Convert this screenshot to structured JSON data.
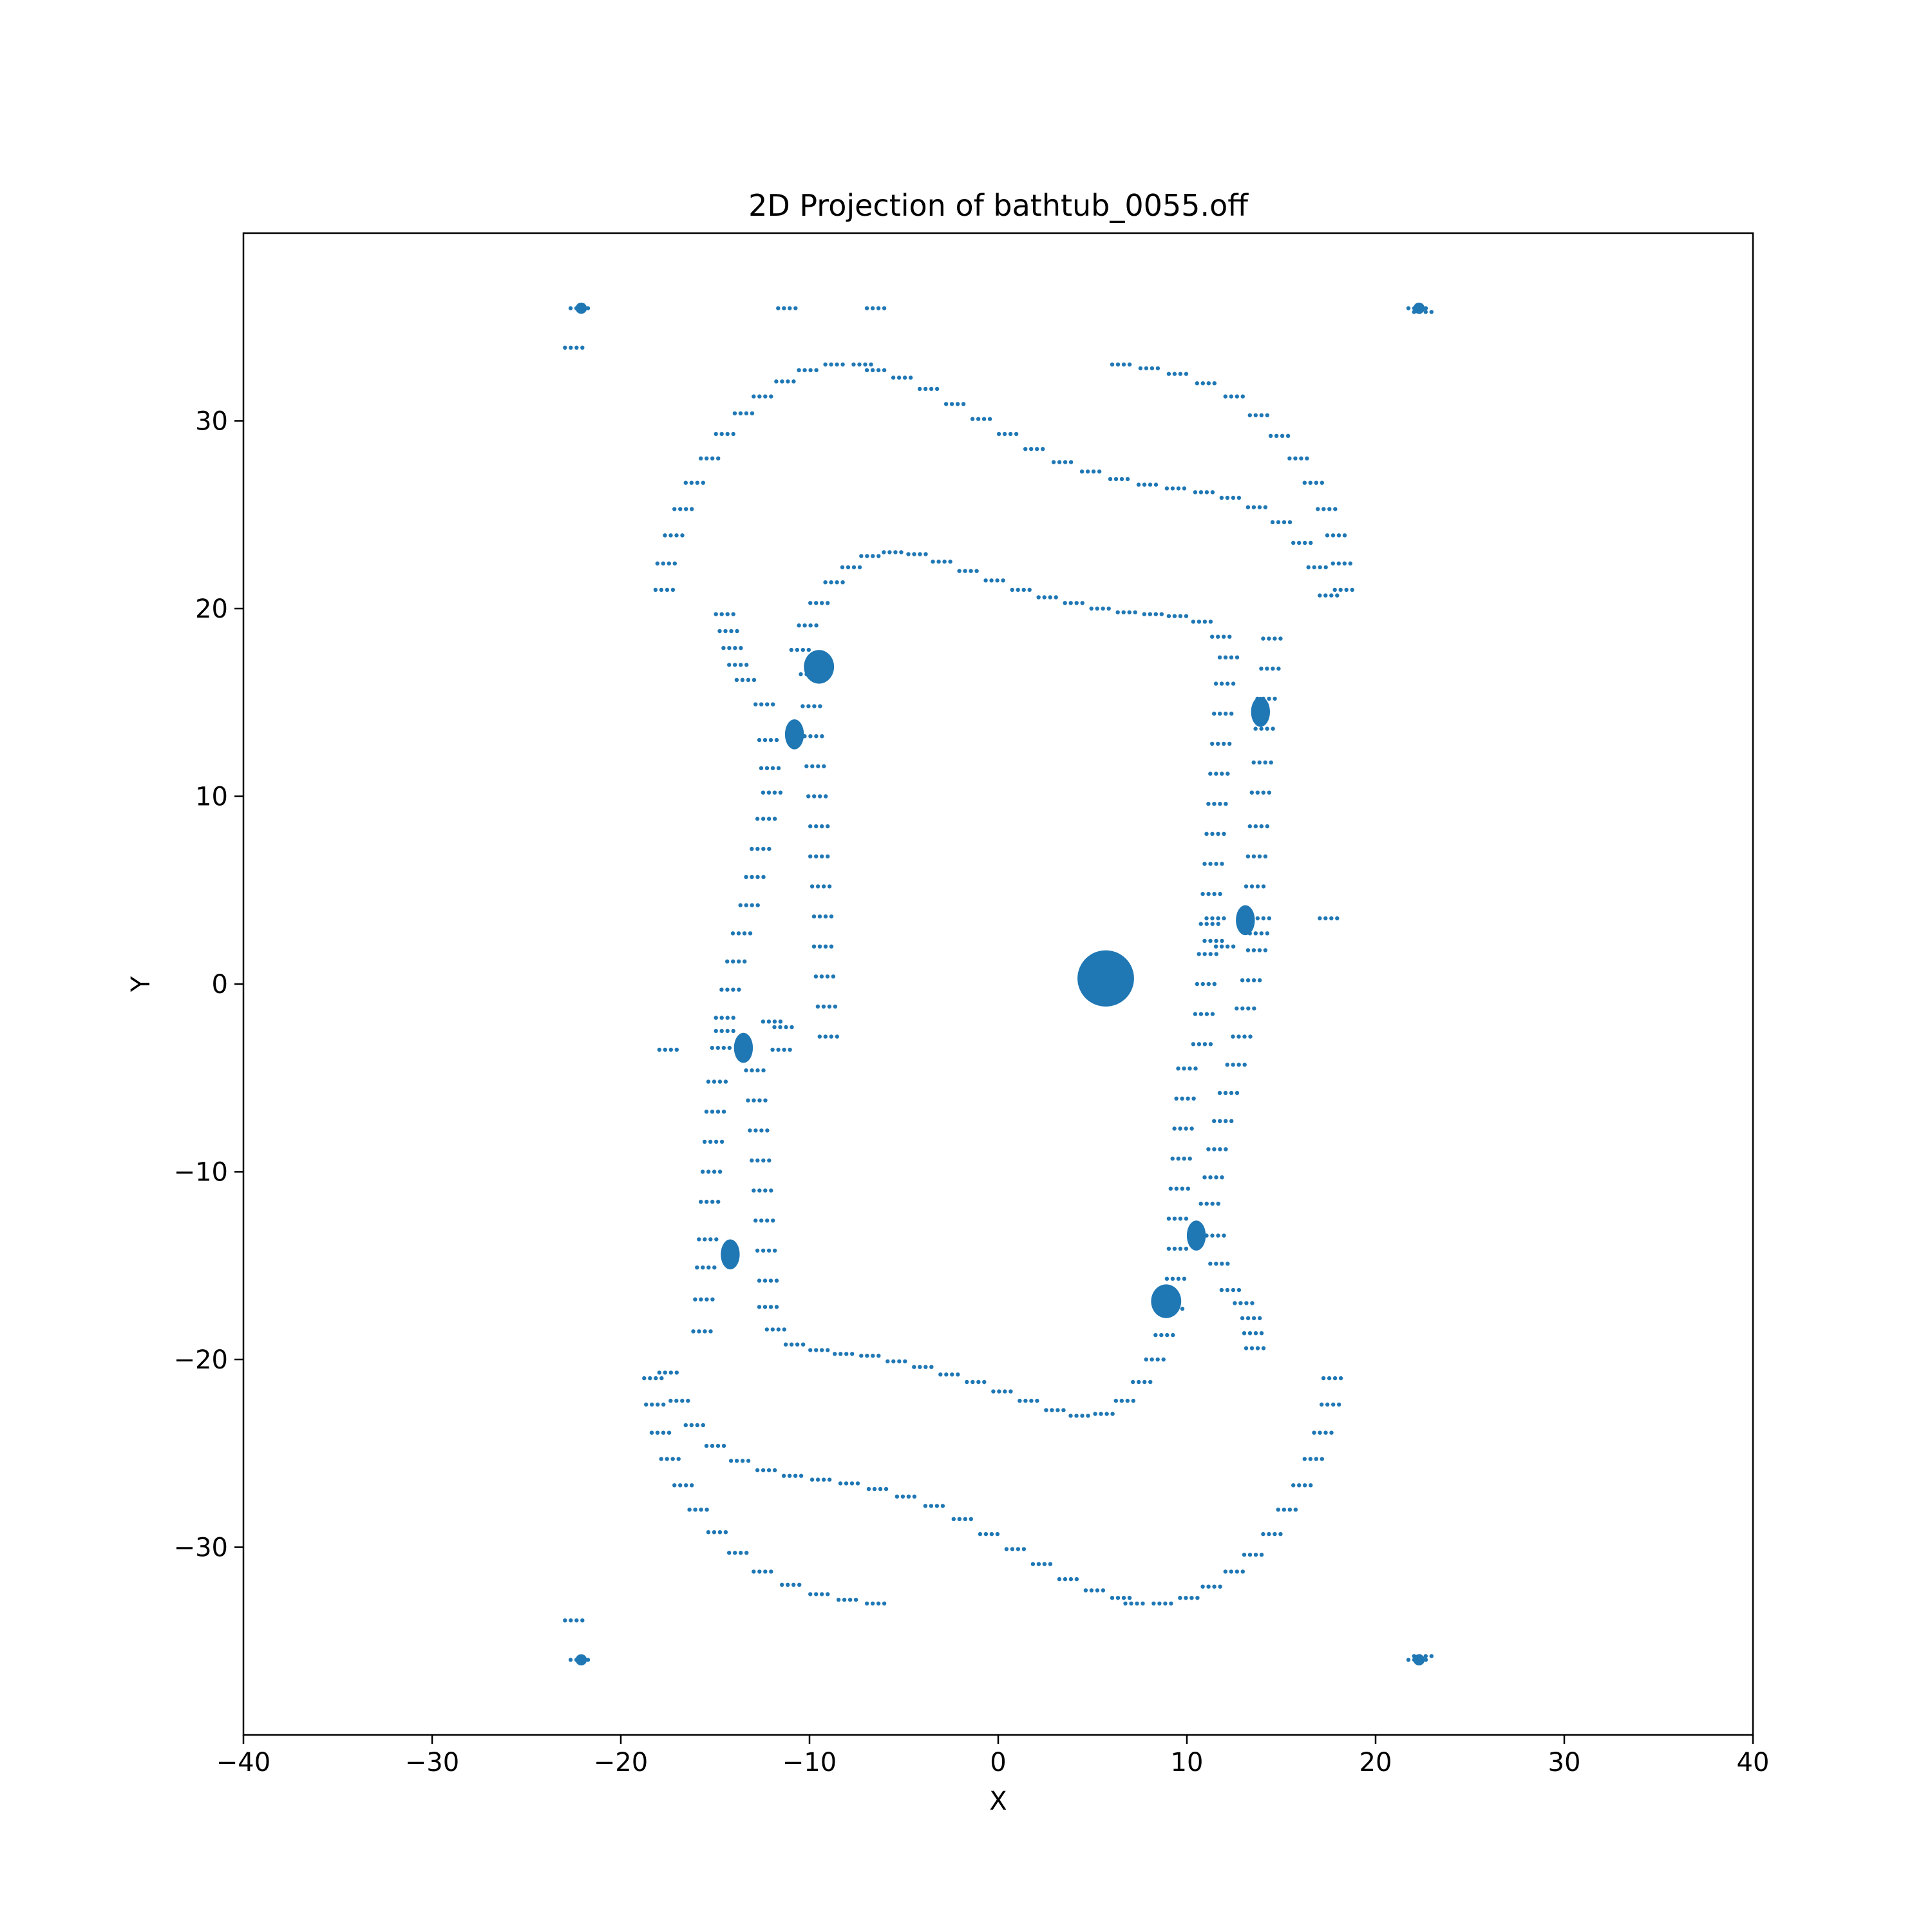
{
  "chart_data": {
    "type": "scatter",
    "title": "2D Projection of bathtub_0055.off",
    "xlabel": "X",
    "ylabel": "Y",
    "xlim": [
      -40,
      40
    ],
    "ylim": [
      -40,
      40
    ],
    "xticks": [
      -40,
      -30,
      -20,
      -10,
      0,
      10,
      20,
      30,
      40
    ],
    "yticks": [
      -30,
      -20,
      -10,
      0,
      10,
      20,
      30
    ],
    "xtick_labels": [
      "−40",
      "−30",
      "−20",
      "−10",
      "0",
      "10",
      "20",
      "30",
      "40"
    ],
    "ytick_labels": [
      "−30",
      "−20",
      "−10",
      "0",
      "10",
      "20",
      "30"
    ],
    "grid": false,
    "legend": "none",
    "marker_color": "#1f77b4",
    "series": [
      {
        "values": [
          [
            -22.2,
            36.0
          ],
          [
            -22.5,
            33.9
          ],
          [
            -11.2,
            36.0
          ],
          [
            -6.5,
            36.0
          ],
          [
            22.2,
            36.0
          ],
          [
            22.5,
            35.8
          ],
          [
            -22.2,
            -36.0
          ],
          [
            -22.5,
            -33.9
          ],
          [
            22.2,
            -36.0
          ],
          [
            22.5,
            -35.8
          ],
          [
            -17.5,
            -3.5
          ],
          [
            17.5,
            3.5
          ],
          [
            -17.7,
            21.0
          ],
          [
            -17.6,
            22.4
          ],
          [
            -17.2,
            23.9
          ],
          [
            -16.7,
            25.3
          ],
          [
            -16.1,
            26.7
          ],
          [
            -15.3,
            28.0
          ],
          [
            -14.5,
            29.3
          ],
          [
            -13.5,
            30.4
          ],
          [
            -12.5,
            31.3
          ],
          [
            -11.3,
            32.1
          ],
          [
            -10.1,
            32.7
          ],
          [
            -8.7,
            33.0
          ],
          [
            -7.2,
            33.0
          ],
          [
            -6.5,
            32.7
          ],
          [
            -5.1,
            32.3
          ],
          [
            -3.7,
            31.7
          ],
          [
            -2.3,
            30.9
          ],
          [
            -0.9,
            30.1
          ],
          [
            0.5,
            29.3
          ],
          [
            1.9,
            28.5
          ],
          [
            3.4,
            27.8
          ],
          [
            4.9,
            27.3
          ],
          [
            6.4,
            26.9
          ],
          [
            7.9,
            26.6
          ],
          [
            9.4,
            26.4
          ],
          [
            10.9,
            26.2
          ],
          [
            12.3,
            25.9
          ],
          [
            13.7,
            25.4
          ],
          [
            15.0,
            24.6
          ],
          [
            16.1,
            23.5
          ],
          [
            16.9,
            22.2
          ],
          [
            17.5,
            20.7
          ],
          [
            6.5,
            33.0
          ],
          [
            8.0,
            32.8
          ],
          [
            9.5,
            32.5
          ],
          [
            11.0,
            32.0
          ],
          [
            12.5,
            31.3
          ],
          [
            13.8,
            30.3
          ],
          [
            14.9,
            29.2
          ],
          [
            15.9,
            28.0
          ],
          [
            16.7,
            26.7
          ],
          [
            17.4,
            25.3
          ],
          [
            17.9,
            23.9
          ],
          [
            18.2,
            22.4
          ],
          [
            18.3,
            21.0
          ],
          [
            17.7,
            -21.0
          ],
          [
            17.6,
            -22.4
          ],
          [
            17.2,
            -23.9
          ],
          [
            16.7,
            -25.3
          ],
          [
            16.1,
            -26.7
          ],
          [
            15.3,
            -28.0
          ],
          [
            14.5,
            -29.3
          ],
          [
            13.5,
            -30.4
          ],
          [
            12.5,
            -31.3
          ],
          [
            11.3,
            -32.1
          ],
          [
            10.1,
            -32.7
          ],
          [
            8.7,
            -33.0
          ],
          [
            7.2,
            -33.0
          ],
          [
            6.5,
            -32.7
          ],
          [
            5.1,
            -32.3
          ],
          [
            3.7,
            -31.7
          ],
          [
            2.3,
            -30.9
          ],
          [
            0.9,
            -30.1
          ],
          [
            -0.5,
            -29.3
          ],
          [
            -1.9,
            -28.5
          ],
          [
            -3.4,
            -27.8
          ],
          [
            -4.9,
            -27.3
          ],
          [
            -6.4,
            -26.9
          ],
          [
            -7.9,
            -26.6
          ],
          [
            -9.4,
            -26.4
          ],
          [
            -10.9,
            -26.2
          ],
          [
            -12.3,
            -25.9
          ],
          [
            -13.7,
            -25.4
          ],
          [
            -15.0,
            -24.6
          ],
          [
            -16.1,
            -23.5
          ],
          [
            -16.9,
            -22.2
          ],
          [
            -17.5,
            -20.7
          ],
          [
            -6.5,
            -33.0
          ],
          [
            -8.0,
            -32.8
          ],
          [
            -9.5,
            -32.5
          ],
          [
            -11.0,
            -32.0
          ],
          [
            -12.5,
            -31.3
          ],
          [
            -13.8,
            -30.3
          ],
          [
            -14.9,
            -29.2
          ],
          [
            -15.9,
            -28.0
          ],
          [
            -16.7,
            -26.7
          ],
          [
            -17.4,
            -25.3
          ],
          [
            -17.9,
            -23.9
          ],
          [
            -18.2,
            -22.4
          ],
          [
            -18.3,
            -21.0
          ],
          [
            -10.0,
            16.5
          ],
          [
            -9.9,
            14.8
          ],
          [
            -9.8,
            13.2
          ],
          [
            -9.7,
            11.6
          ],
          [
            -9.6,
            10.0
          ],
          [
            -9.5,
            8.4
          ],
          [
            -9.5,
            6.8
          ],
          [
            -9.4,
            5.2
          ],
          [
            -9.3,
            3.6
          ],
          [
            -9.3,
            2.0
          ],
          [
            -9.2,
            0.4
          ],
          [
            -9.1,
            -1.2
          ],
          [
            -9.0,
            -2.8
          ],
          [
            -10.5,
            17.8
          ],
          [
            -10.1,
            19.1
          ],
          [
            -9.5,
            20.3
          ],
          [
            -8.7,
            21.4
          ],
          [
            -7.8,
            22.2
          ],
          [
            -6.8,
            22.8
          ],
          [
            -5.6,
            23.0
          ],
          [
            -4.3,
            22.9
          ],
          [
            -3.0,
            22.5
          ],
          [
            -1.6,
            22.0
          ],
          [
            -0.2,
            21.5
          ],
          [
            1.2,
            21.0
          ],
          [
            2.6,
            20.6
          ],
          [
            4.0,
            20.3
          ],
          [
            5.4,
            20.0
          ],
          [
            6.8,
            19.8
          ],
          [
            8.2,
            19.7
          ],
          [
            9.5,
            19.6
          ],
          [
            10.8,
            19.3
          ],
          [
            11.8,
            18.5
          ],
          [
            12.2,
            17.4
          ],
          [
            12.0,
            16.0
          ],
          [
            11.9,
            14.4
          ],
          [
            11.8,
            12.8
          ],
          [
            11.7,
            11.2
          ],
          [
            11.6,
            9.6
          ],
          [
            11.5,
            8.0
          ],
          [
            11.4,
            6.4
          ],
          [
            11.3,
            4.8
          ],
          [
            11.2,
            3.2
          ],
          [
            11.1,
            1.6
          ],
          [
            11.0,
            0.0
          ],
          [
            10.9,
            -1.6
          ],
          [
            10.8,
            -3.2
          ],
          [
            10.0,
            -4.5
          ],
          [
            9.9,
            -6.1
          ],
          [
            9.8,
            -7.7
          ],
          [
            9.7,
            -9.3
          ],
          [
            9.6,
            -10.9
          ],
          [
            9.5,
            -12.5
          ],
          [
            9.5,
            -14.1
          ],
          [
            9.4,
            -15.7
          ],
          [
            9.3,
            -17.3
          ],
          [
            8.8,
            -18.7
          ],
          [
            8.3,
            -20.0
          ],
          [
            7.6,
            -21.2
          ],
          [
            6.7,
            -22.2
          ],
          [
            5.6,
            -22.9
          ],
          [
            4.3,
            -23.0
          ],
          [
            3.0,
            -22.7
          ],
          [
            1.6,
            -22.2
          ],
          [
            0.2,
            -21.7
          ],
          [
            -1.2,
            -21.2
          ],
          [
            -2.6,
            -20.8
          ],
          [
            -4.0,
            -20.4
          ],
          [
            -5.4,
            -20.1
          ],
          [
            -6.8,
            -19.8
          ],
          [
            -8.2,
            -19.7
          ],
          [
            -9.5,
            -19.5
          ],
          [
            -10.8,
            -19.2
          ],
          [
            -11.8,
            -18.4
          ],
          [
            -12.2,
            -17.2
          ],
          [
            -12.2,
            -15.8
          ],
          [
            -12.3,
            -14.2
          ],
          [
            -12.4,
            -12.6
          ],
          [
            -12.5,
            -11.0
          ],
          [
            -12.6,
            -9.4
          ],
          [
            -12.7,
            -7.8
          ],
          [
            -12.8,
            -6.2
          ],
          [
            -12.9,
            -4.6
          ],
          [
            -12.0,
            -2.0
          ],
          [
            -11.4,
            -2.3
          ],
          [
            -11.5,
            -3.5
          ],
          [
            -14.5,
            19.7
          ],
          [
            -14.3,
            18.8
          ],
          [
            -14.1,
            17.9
          ],
          [
            -13.8,
            17.0
          ],
          [
            -13.4,
            16.2
          ],
          [
            -12.4,
            14.9
          ],
          [
            -12.2,
            13.0
          ],
          [
            -12.1,
            11.5
          ],
          [
            -12.0,
            10.2
          ],
          [
            -12.3,
            8.8
          ],
          [
            -12.6,
            7.2
          ],
          [
            -12.9,
            5.7
          ],
          [
            -13.2,
            4.2
          ],
          [
            -13.6,
            2.7
          ],
          [
            -13.9,
            1.2
          ],
          [
            -14.2,
            -0.3
          ],
          [
            -14.5,
            -1.8
          ],
          [
            -14.5,
            -2.5
          ],
          [
            -14.7,
            -3.4
          ],
          [
            -14.9,
            -5.2
          ],
          [
            -15.0,
            -6.8
          ],
          [
            -15.1,
            -8.4
          ],
          [
            -15.2,
            -10.0
          ],
          [
            -15.3,
            -11.6
          ],
          [
            -15.4,
            -13.6
          ],
          [
            -15.5,
            -15.1
          ],
          [
            -15.6,
            -16.8
          ],
          [
            -15.7,
            -18.5
          ],
          [
            14.5,
            18.4
          ],
          [
            14.4,
            16.8
          ],
          [
            14.2,
            15.2
          ],
          [
            14.1,
            13.6
          ],
          [
            14.0,
            11.8
          ],
          [
            13.9,
            10.2
          ],
          [
            13.8,
            8.4
          ],
          [
            13.7,
            6.8
          ],
          [
            13.6,
            5.2
          ],
          [
            13.9,
            3.5
          ],
          [
            13.8,
            2.7
          ],
          [
            13.7,
            1.8
          ],
          [
            12.0,
            2.0
          ],
          [
            11.4,
            2.3
          ],
          [
            11.5,
            3.5
          ],
          [
            13.4,
            0.2
          ],
          [
            13.1,
            -1.3
          ],
          [
            12.9,
            -2.8
          ],
          [
            12.6,
            -4.3
          ],
          [
            12.2,
            -5.8
          ],
          [
            11.9,
            -7.3
          ],
          [
            11.6,
            -8.8
          ],
          [
            11.4,
            -10.3
          ],
          [
            11.2,
            -11.7
          ],
          [
            11.5,
            -13.4
          ],
          [
            11.7,
            -14.9
          ],
          [
            12.3,
            -16.3
          ],
          [
            13.0,
            -17.0
          ],
          [
            13.4,
            -17.8
          ],
          [
            13.5,
            -18.6
          ],
          [
            13.6,
            -19.4
          ]
        ]
      }
    ],
    "clusters": [
      {
        "center": [
          5.7,
          0.3
        ],
        "rx": 1.5,
        "ry": 1.5
      },
      {
        "center": [
          -10.8,
          13.3
        ],
        "rx": 0.5,
        "ry": 0.8
      },
      {
        "center": [
          13.9,
          14.5
        ],
        "rx": 0.5,
        "ry": 0.8
      },
      {
        "center": [
          13.1,
          3.4
        ],
        "rx": 0.5,
        "ry": 0.8
      },
      {
        "center": [
          -13.5,
          -3.4
        ],
        "rx": 0.5,
        "ry": 0.8
      },
      {
        "center": [
          -14.2,
          -14.4
        ],
        "rx": 0.5,
        "ry": 0.8
      },
      {
        "center": [
          10.5,
          -13.4
        ],
        "rx": 0.5,
        "ry": 0.8
      },
      {
        "center": [
          -9.5,
          16.9
        ],
        "rx": 0.8,
        "ry": 0.9
      },
      {
        "center": [
          8.9,
          -16.9
        ],
        "rx": 0.8,
        "ry": 0.9
      },
      {
        "center": [
          -22.1,
          36.0
        ],
        "rx": 0.3,
        "ry": 0.3
      },
      {
        "center": [
          22.3,
          36.0
        ],
        "rx": 0.3,
        "ry": 0.3
      },
      {
        "center": [
          -22.1,
          -36.0
        ],
        "rx": 0.3,
        "ry": 0.3
      },
      {
        "center": [
          22.3,
          -36.0
        ],
        "rx": 0.3,
        "ry": 0.3
      }
    ]
  }
}
